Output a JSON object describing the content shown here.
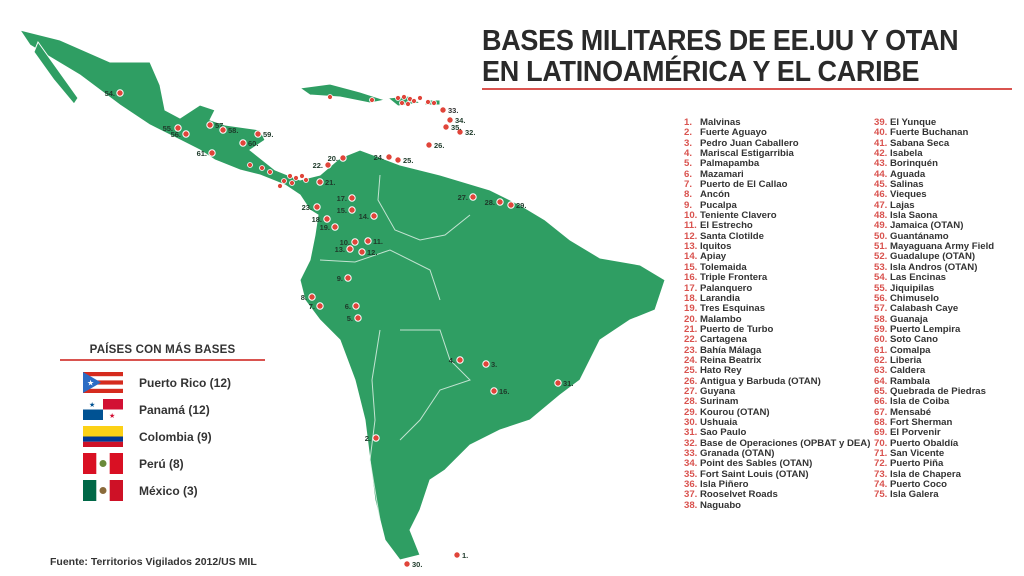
{
  "title": {
    "line1": "BASES MILITARES DE EE.UU Y OTAN",
    "line2": "EN LATINOAMÉRICA Y EL CARIBE"
  },
  "colors": {
    "land": "#2f9e63",
    "marker": "#e0453a",
    "accent": "#d9534f"
  },
  "bases": [
    {
      "n": "1.",
      "name": "Malvinas"
    },
    {
      "n": "2.",
      "name": "Fuerte Aguayo"
    },
    {
      "n": "3.",
      "name": "Pedro Juan Caballero"
    },
    {
      "n": "4.",
      "name": "Mariscal Estigarribia"
    },
    {
      "n": "5.",
      "name": "Palmapamba"
    },
    {
      "n": "6.",
      "name": "Mazamari"
    },
    {
      "n": "7.",
      "name": "Puerto de El Callao"
    },
    {
      "n": "8.",
      "name": "Ancón"
    },
    {
      "n": "9.",
      "name": "Pucalpa"
    },
    {
      "n": "10.",
      "name": "Teniente Clavero"
    },
    {
      "n": "11.",
      "name": "El Estrecho"
    },
    {
      "n": "12.",
      "name": "Santa Clotilde"
    },
    {
      "n": "13.",
      "name": "Iquitos"
    },
    {
      "n": "14.",
      "name": "Apiay"
    },
    {
      "n": "15.",
      "name": "Tolemaida"
    },
    {
      "n": "16.",
      "name": "Triple Frontera"
    },
    {
      "n": "17.",
      "name": "Palanquero"
    },
    {
      "n": "18.",
      "name": "Larandia"
    },
    {
      "n": "19.",
      "name": "Tres Esquinas"
    },
    {
      "n": "20.",
      "name": "Malambo"
    },
    {
      "n": "21.",
      "name": "Puerto de Turbo"
    },
    {
      "n": "22.",
      "name": "Cartagena"
    },
    {
      "n": "23.",
      "name": "Bahía Málaga"
    },
    {
      "n": "24.",
      "name": "Reina Beatrix"
    },
    {
      "n": "25.",
      "name": "Hato Rey"
    },
    {
      "n": "26.",
      "name": "Antigua y Barbuda (OTAN)"
    },
    {
      "n": "27.",
      "name": "Guyana"
    },
    {
      "n": "28.",
      "name": "Surinam"
    },
    {
      "n": "29.",
      "name": "Kourou (OTAN)"
    },
    {
      "n": "30.",
      "name": "Ushuaia"
    },
    {
      "n": "31.",
      "name": "Sao Paulo"
    },
    {
      "n": "32.",
      "name": "Base de Operaciones (OPBAT y DEA)"
    },
    {
      "n": "33.",
      "name": "Granada (OTAN)"
    },
    {
      "n": "34.",
      "name": "Point des Sables (OTAN)"
    },
    {
      "n": "35.",
      "name": "Fort Saint Louis (OTAN)"
    },
    {
      "n": "36.",
      "name": "Isla Piñero"
    },
    {
      "n": "37.",
      "name": "Rooselvet Roads"
    },
    {
      "n": "38.",
      "name": "Naguabo"
    },
    {
      "n": "39.",
      "name": "El Yunque"
    },
    {
      "n": "40.",
      "name": "Fuerte Buchanan"
    },
    {
      "n": "41.",
      "name": "Sabana Seca"
    },
    {
      "n": "42.",
      "name": "Isabela"
    },
    {
      "n": "43.",
      "name": "Borinquén"
    },
    {
      "n": "44.",
      "name": "Aguada"
    },
    {
      "n": "45.",
      "name": "Salinas"
    },
    {
      "n": "46.",
      "name": "Vieques"
    },
    {
      "n": "47.",
      "name": "Lajas"
    },
    {
      "n": "48.",
      "name": "Isla Saona"
    },
    {
      "n": "49.",
      "name": "Jamaica (OTAN)"
    },
    {
      "n": "50.",
      "name": "Guantánamo"
    },
    {
      "n": "51.",
      "name": "Mayaguana Army Field"
    },
    {
      "n": "52.",
      "name": "Guadalupe (OTAN)"
    },
    {
      "n": "53.",
      "name": "Isla Andros (OTAN)"
    },
    {
      "n": "54.",
      "name": "Las Encinas"
    },
    {
      "n": "55.",
      "name": "Jiquipilas"
    },
    {
      "n": "56.",
      "name": "Chimuselo"
    },
    {
      "n": "57.",
      "name": "Calabash Caye"
    },
    {
      "n": "58.",
      "name": "Guanaja"
    },
    {
      "n": "59.",
      "name": "Puerto Lempira"
    },
    {
      "n": "60.",
      "name": "Soto Cano"
    },
    {
      "n": "61.",
      "name": "Comalpa"
    },
    {
      "n": "62.",
      "name": "Liberia"
    },
    {
      "n": "63.",
      "name": "Caldera"
    },
    {
      "n": "64.",
      "name": "Rambala"
    },
    {
      "n": "65.",
      "name": "Quebrada de Piedras"
    },
    {
      "n": "66.",
      "name": "Isla de Coiba"
    },
    {
      "n": "67.",
      "name": "Mensabé"
    },
    {
      "n": "68.",
      "name": "Fort Sherman"
    },
    {
      "n": "69.",
      "name": "El Porvenir"
    },
    {
      "n": "70.",
      "name": "Puerto Obaldía"
    },
    {
      "n": "71.",
      "name": "San Vicente"
    },
    {
      "n": "72.",
      "name": "Puerto Piña"
    },
    {
      "n": "73.",
      "name": "Isla de Chapera"
    },
    {
      "n": "74.",
      "name": "Puerto Coco"
    },
    {
      "n": "75.",
      "name": "Isla Galera"
    }
  ],
  "map_labels": [
    "1.",
    "2.",
    "3.",
    "4.",
    "5.",
    "6.",
    "7.",
    "8.",
    "9.",
    "10.",
    "11.",
    "12.",
    "13.",
    "14.",
    "15.",
    "16.",
    "17.",
    "18.",
    "19.",
    "20.",
    "21.",
    "22.",
    "23.",
    "24.",
    "25.",
    "26.",
    "27.",
    "28.",
    "29.",
    "30.",
    "31.",
    "32.",
    "33.",
    "34.",
    "35.",
    "54.",
    "55.",
    "56.",
    "57.",
    "58.",
    "59.",
    "60.",
    "61."
  ],
  "legend": {
    "title": "PAÍSES CON MÁS BASES",
    "items": [
      {
        "label": "Puerto Rico (12)",
        "flag": "puerto-rico"
      },
      {
        "label": "Panamá (12)",
        "flag": "panama"
      },
      {
        "label": "Colombia (9)",
        "flag": "colombia"
      },
      {
        "label": "Perú (8)",
        "flag": "peru"
      },
      {
        "label": "México (3)",
        "flag": "mexico"
      }
    ]
  },
  "source": "Fuente: Territorios Vigilados 2012/US MIL"
}
